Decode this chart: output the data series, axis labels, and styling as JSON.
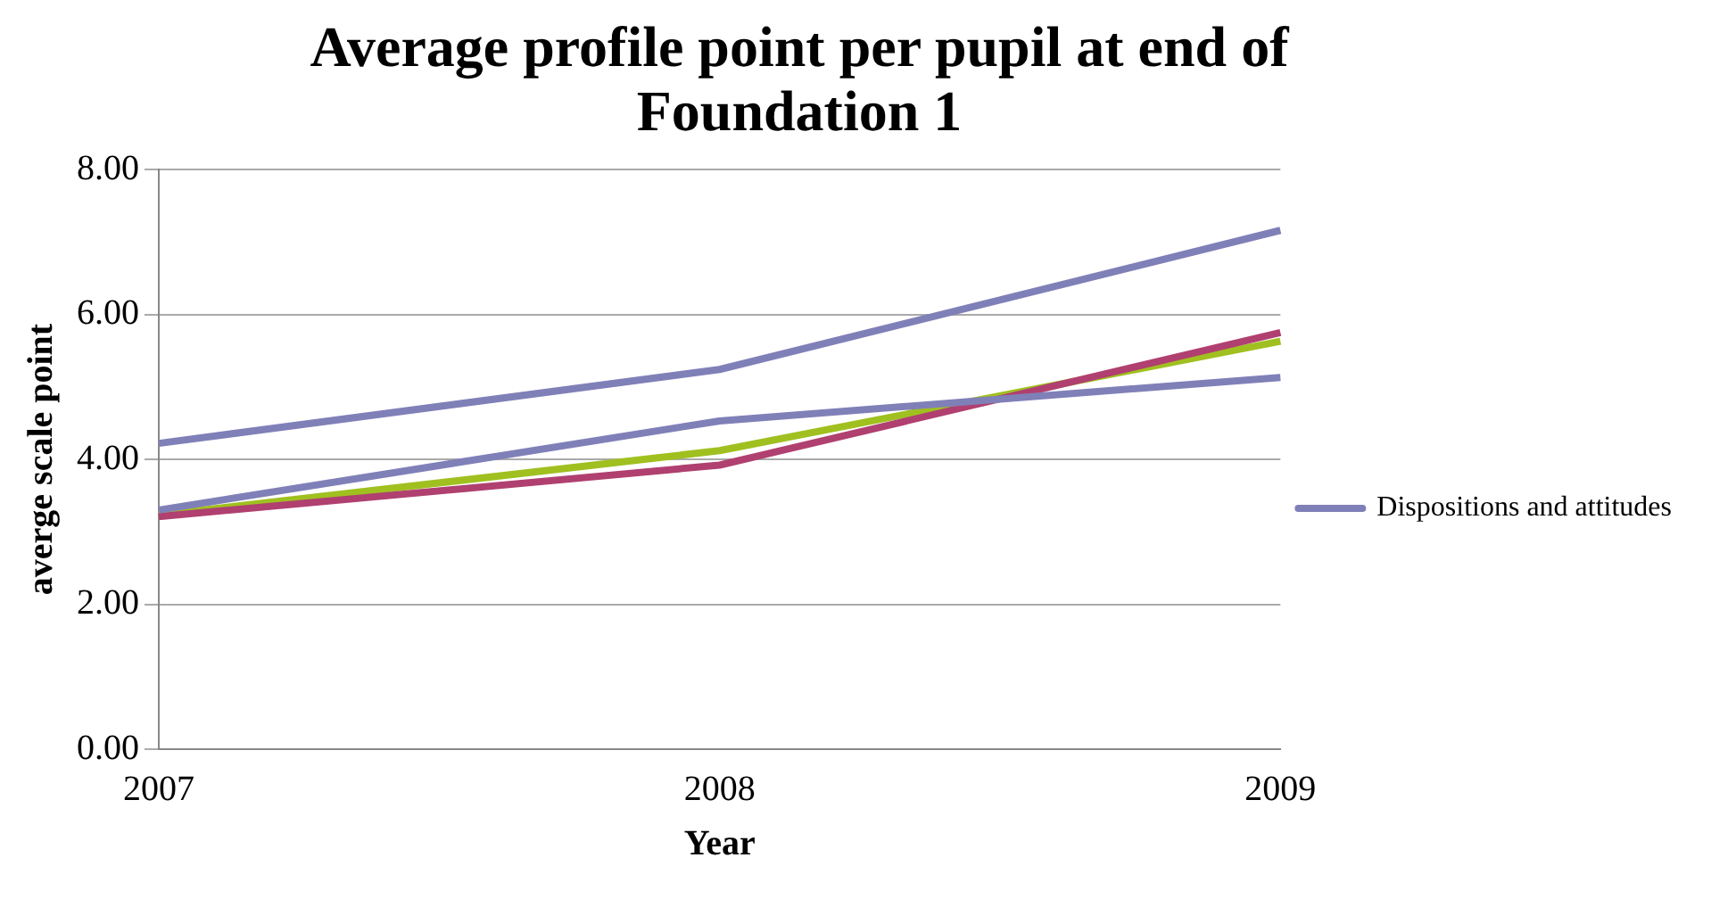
{
  "chart_data": {
    "type": "line",
    "title": "Average profile point per pupil at end of Foundation 1",
    "xlabel": "Year",
    "ylabel": "averge scale point",
    "categories": [
      "2007",
      "2008",
      "2009"
    ],
    "series": [
      {
        "name": "Dispositions and attitudes",
        "color": "#8080b8",
        "values": [
          4.22,
          5.24,
          7.16
        ]
      },
      {
        "color": "#8080b8",
        "values": [
          3.3,
          4.53,
          5.13
        ]
      },
      {
        "color": "#b04070",
        "values": [
          3.21,
          3.92,
          5.75
        ]
      },
      {
        "color": "#a0c020",
        "values": [
          3.23,
          4.12,
          5.63
        ]
      }
    ],
    "ylim": [
      0,
      8
    ],
    "yticks": [
      {
        "value": 0,
        "label": "0.00"
      },
      {
        "value": 2,
        "label": "2.00"
      },
      {
        "value": 4,
        "label": "4.00"
      },
      {
        "value": 6,
        "label": "6.00"
      },
      {
        "value": 8,
        "label": "8.00"
      }
    ],
    "grid": "y",
    "legend": "right",
    "marker": "none"
  }
}
